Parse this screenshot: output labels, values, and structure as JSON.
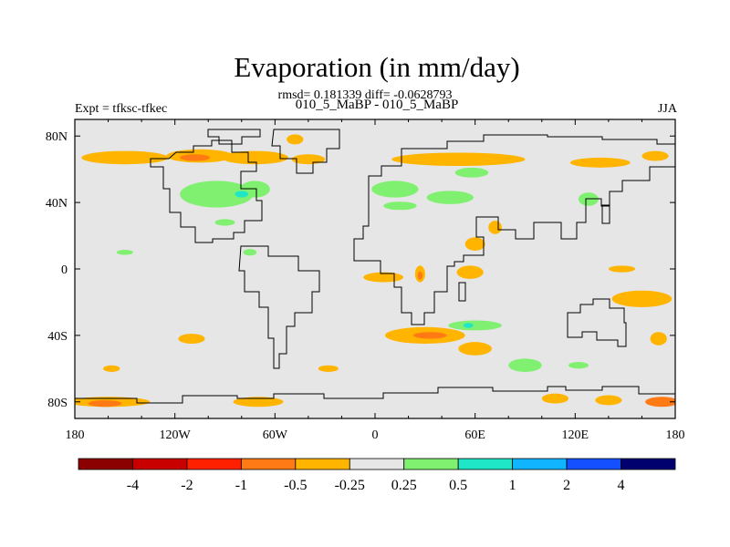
{
  "chart_data": {
    "type": "contour-map",
    "title": "Evaporation (in mm/day)",
    "stats_line": "rmsd= 0.181339 diff= -0.0628793",
    "subtitle": "010_5_MaBP - 010_5_MaBP",
    "left_label": "Expt = tfksc-tfkec",
    "right_label": "JJA",
    "x_range": [
      -180,
      180
    ],
    "y_range": [
      -90,
      90
    ],
    "x_ticks": [
      {
        "value": -180,
        "label": "180"
      },
      {
        "value": -120,
        "label": "120W"
      },
      {
        "value": -60,
        "label": "60W"
      },
      {
        "value": 0,
        "label": "0"
      },
      {
        "value": 60,
        "label": "60E"
      },
      {
        "value": 120,
        "label": "120E"
      },
      {
        "value": 180,
        "label": "180"
      }
    ],
    "y_ticks": [
      {
        "value": 80,
        "label": "80N"
      },
      {
        "value": 40,
        "label": "40N"
      },
      {
        "value": 0,
        "label": "0"
      },
      {
        "value": -40,
        "label": "40S"
      },
      {
        "value": -80,
        "label": "80S"
      }
    ],
    "colorbar": {
      "colors": [
        "#8b0000",
        "#c80000",
        "#ff2000",
        "#ff7a14",
        "#ffb400",
        "#e6e6e6",
        "#80f070",
        "#20e6c8",
        "#10b4ff",
        "#1450ff",
        "#00006e"
      ],
      "labels": [
        "-4",
        "-2",
        "-1",
        "-0.5",
        "-0.25",
        "0.25",
        "0.5",
        "1",
        "2",
        "4"
      ]
    },
    "regions": [
      {
        "lon": -150,
        "lat": 67,
        "rx": 26,
        "ry": 4,
        "level": -0.3
      },
      {
        "lon": -105,
        "lat": 68,
        "rx": 20,
        "ry": 4,
        "level": -0.3
      },
      {
        "lon": -72,
        "lat": 67,
        "rx": 20,
        "ry": 4,
        "level": -0.3
      },
      {
        "lon": -108,
        "lat": 67,
        "rx": 9,
        "ry": 2,
        "level": -0.6
      },
      {
        "lon": -48,
        "lat": 78,
        "rx": 5,
        "ry": 3,
        "level": -0.3
      },
      {
        "lon": -40,
        "lat": 66,
        "rx": 10,
        "ry": 3,
        "level": -0.3
      },
      {
        "lon": 50,
        "lat": 66,
        "rx": 40,
        "ry": 4,
        "level": -0.3
      },
      {
        "lon": 135,
        "lat": 64,
        "rx": 18,
        "ry": 3,
        "level": -0.3
      },
      {
        "lon": 168,
        "lat": 68,
        "rx": 8,
        "ry": 3,
        "level": -0.3
      },
      {
        "lon": -95,
        "lat": 45,
        "rx": 22,
        "ry": 8,
        "level": 0.3
      },
      {
        "lon": -72,
        "lat": 48,
        "rx": 9,
        "ry": 5,
        "level": 0.3
      },
      {
        "lon": -80,
        "lat": 45,
        "rx": 4,
        "ry": 2,
        "level": 0.6
      },
      {
        "lon": 12,
        "lat": 48,
        "rx": 14,
        "ry": 5,
        "level": 0.3
      },
      {
        "lon": 45,
        "lat": 43,
        "rx": 14,
        "ry": 4,
        "level": 0.3
      },
      {
        "lon": 58,
        "lat": 58,
        "rx": 10,
        "ry": 3,
        "level": 0.3
      },
      {
        "lon": 128,
        "lat": 42,
        "rx": 6,
        "ry": 4,
        "level": 0.3
      },
      {
        "lon": 15,
        "lat": 38,
        "rx": 10,
        "ry": 2.5,
        "level": 0.3
      },
      {
        "lon": -90,
        "lat": 28,
        "rx": 6,
        "ry": 2,
        "level": 0.3
      },
      {
        "lon": -75,
        "lat": 10,
        "rx": 4,
        "ry": 2,
        "level": 0.3
      },
      {
        "lon": -150,
        "lat": 10,
        "rx": 5,
        "ry": 1.5,
        "level": 0.3
      },
      {
        "lon": 60,
        "lat": 15,
        "rx": 6,
        "ry": 4,
        "level": -0.3
      },
      {
        "lon": 72,
        "lat": 25,
        "rx": 4,
        "ry": 4,
        "level": -0.3
      },
      {
        "lon": 5,
        "lat": -5,
        "rx": 12,
        "ry": 3,
        "level": -0.3
      },
      {
        "lon": 27,
        "lat": -3,
        "rx": 3,
        "ry": 5,
        "level": -0.3
      },
      {
        "lon": 27,
        "lat": -4,
        "rx": 1.5,
        "ry": 2.5,
        "level": -0.6
      },
      {
        "lon": 57,
        "lat": -2,
        "rx": 8,
        "ry": 4,
        "level": -0.3
      },
      {
        "lon": 148,
        "lat": 0,
        "rx": 8,
        "ry": 2,
        "level": -0.3
      },
      {
        "lon": 160,
        "lat": -18,
        "rx": 18,
        "ry": 5,
        "level": -0.3
      },
      {
        "lon": 170,
        "lat": -42,
        "rx": 5,
        "ry": 4,
        "level": -0.3
      },
      {
        "lon": 30,
        "lat": -40,
        "rx": 24,
        "ry": 5,
        "level": -0.3
      },
      {
        "lon": 33,
        "lat": -40,
        "rx": 10,
        "ry": 2,
        "level": -0.6
      },
      {
        "lon": 60,
        "lat": -48,
        "rx": 10,
        "ry": 4,
        "level": -0.3
      },
      {
        "lon": 60,
        "lat": -34,
        "rx": 16,
        "ry": 3,
        "level": 0.3
      },
      {
        "lon": 56,
        "lat": -34,
        "rx": 3,
        "ry": 1.5,
        "level": 0.6
      },
      {
        "lon": 90,
        "lat": -58,
        "rx": 10,
        "ry": 4,
        "level": 0.3
      },
      {
        "lon": 122,
        "lat": -58,
        "rx": 6,
        "ry": 2,
        "level": 0.3
      },
      {
        "lon": -158,
        "lat": -60,
        "rx": 5,
        "ry": 2,
        "level": -0.3
      },
      {
        "lon": -110,
        "lat": -42,
        "rx": 8,
        "ry": 3,
        "level": -0.3
      },
      {
        "lon": -28,
        "lat": -60,
        "rx": 6,
        "ry": 2,
        "level": -0.3
      },
      {
        "lon": -160,
        "lat": -80,
        "rx": 25,
        "ry": 3,
        "level": -0.3
      },
      {
        "lon": -162,
        "lat": -81,
        "rx": 10,
        "ry": 2,
        "level": -0.6
      },
      {
        "lon": -70,
        "lat": -80,
        "rx": 15,
        "ry": 3,
        "level": -0.3
      },
      {
        "lon": 108,
        "lat": -78,
        "rx": 8,
        "ry": 3,
        "level": -0.3
      },
      {
        "lon": 140,
        "lat": -79,
        "rx": 8,
        "ry": 3,
        "level": -0.3
      },
      {
        "lon": 172,
        "lat": -80,
        "rx": 10,
        "ry": 3,
        "level": -0.6
      }
    ]
  }
}
